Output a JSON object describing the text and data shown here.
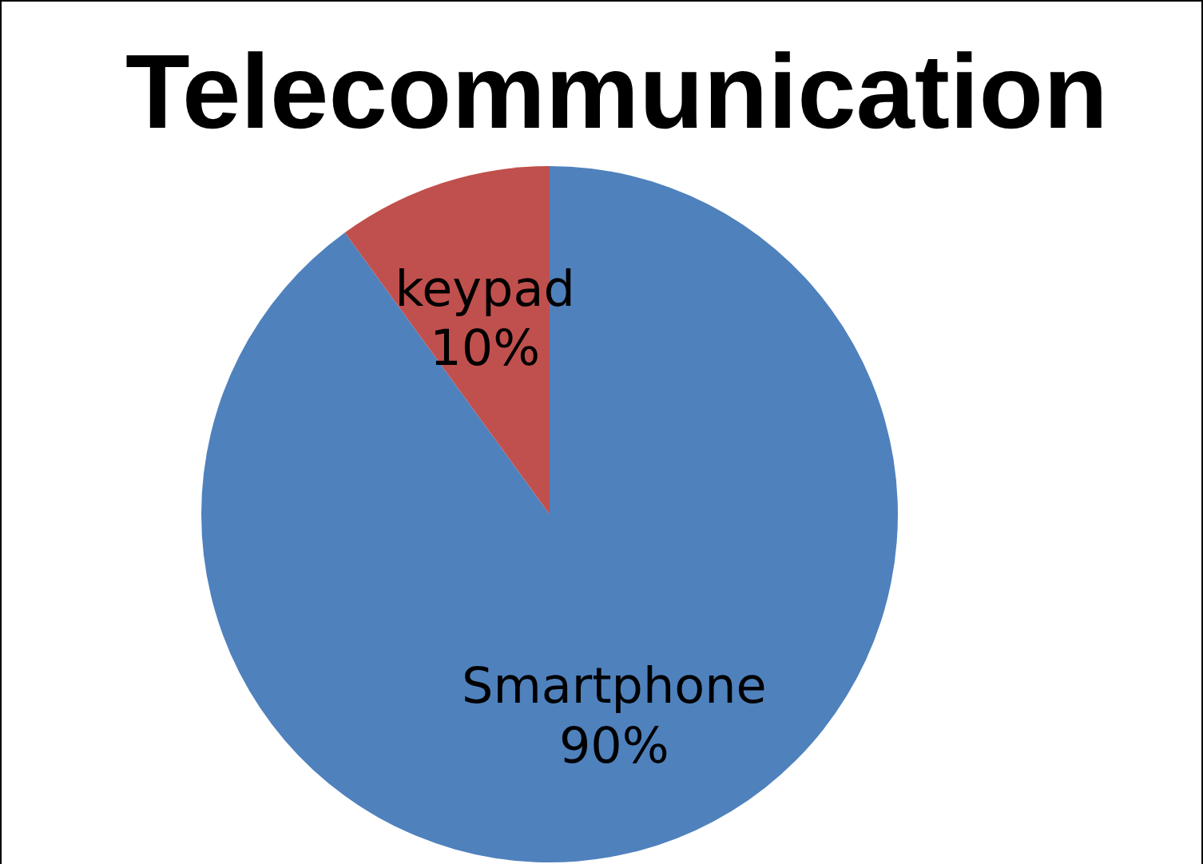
{
  "chart_data": {
    "type": "pie",
    "title": "Telecommunication",
    "categories": [
      "Smartphone",
      "keypad"
    ],
    "values": [
      90,
      10
    ],
    "colors": [
      "#4f81bd",
      "#c0504d"
    ],
    "value_labels": [
      "90%",
      "10%"
    ]
  }
}
